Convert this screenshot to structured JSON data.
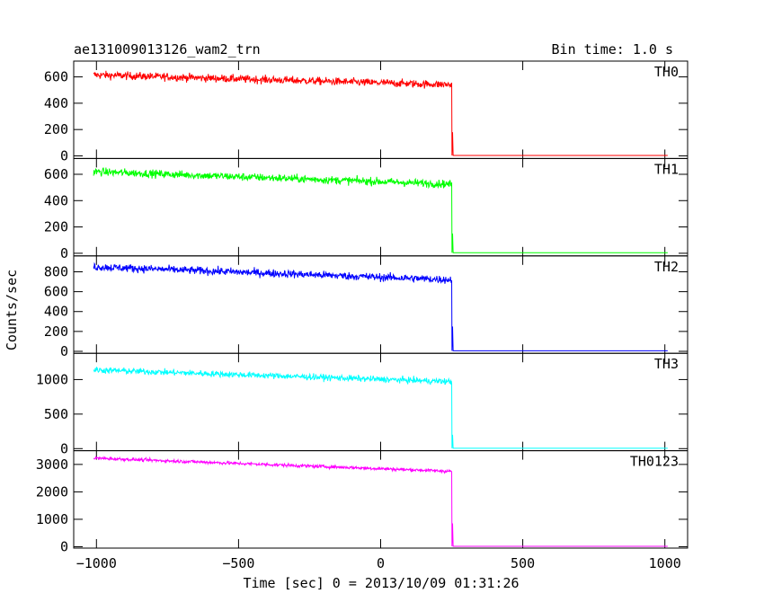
{
  "chart_data": {
    "type": "line",
    "title": "ae131009013126_wam2_trn",
    "bin_time_label": "Bin time: 1.0 s",
    "xlabel": "Time [sec] 0 = 2013/10/09 01:31:26",
    "ylabel": "Counts/sec",
    "xlim": [
      -1080,
      1080
    ],
    "x_ticks": [
      -1000,
      -500,
      0,
      500,
      1000
    ],
    "x_tick_labels": [
      "−1000",
      "−500",
      "0",
      "500",
      "1000"
    ],
    "x_start": -1010,
    "x_end": 1010,
    "step_time": 250,
    "grid": false,
    "legend": "none",
    "panels": [
      {
        "name": "TH0",
        "color": "#ff0000",
        "ylim": [
          -20,
          720
        ],
        "y_ticks": [
          0,
          200,
          400,
          600
        ],
        "y_tick_labels": [
          "0",
          "200",
          "400",
          "600"
        ],
        "level_start": 615,
        "level_end": 540,
        "noise": 30,
        "spike": 180,
        "tail": 3
      },
      {
        "name": "TH1",
        "color": "#00ff00",
        "ylim": [
          -20,
          720
        ],
        "y_ticks": [
          0,
          200,
          400,
          600
        ],
        "y_tick_labels": [
          "0",
          "200",
          "400",
          "600"
        ],
        "level_start": 620,
        "level_end": 525,
        "noise": 30,
        "spike": 150,
        "tail": 4
      },
      {
        "name": "TH2",
        "color": "#0000ff",
        "ylim": [
          -20,
          960
        ],
        "y_ticks": [
          0,
          200,
          400,
          600,
          800
        ],
        "y_tick_labels": [
          "0",
          "200",
          "400",
          "600",
          "800"
        ],
        "level_start": 850,
        "level_end": 720,
        "noise": 40,
        "spike": 250,
        "tail": 5
      },
      {
        "name": "TH3",
        "color": "#00ffff",
        "ylim": [
          -30,
          1380
        ],
        "y_ticks": [
          0,
          500,
          1000
        ],
        "y_tick_labels": [
          "0",
          "500",
          "1000"
        ],
        "level_start": 1140,
        "level_end": 970,
        "noise": 45,
        "spike": 200,
        "tail": 5
      },
      {
        "name": "TH0123",
        "color": "#ff00ff",
        "ylim": [
          -50,
          3500
        ],
        "y_ticks": [
          0,
          1000,
          2000,
          3000
        ],
        "y_tick_labels": [
          "0",
          "1000",
          "2000",
          "3000"
        ],
        "level_start": 3230,
        "level_end": 2750,
        "noise": 60,
        "spike": 850,
        "tail": 15
      }
    ]
  }
}
